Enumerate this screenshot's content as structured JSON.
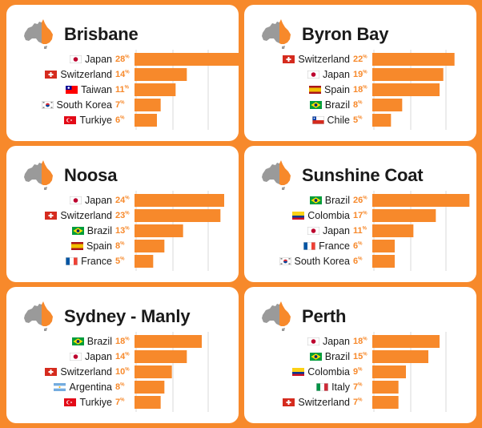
{
  "colors": {
    "background": "#F7892B",
    "bar": "#F7892B",
    "card": "#FFFFFF",
    "grid": "#D9D9D9",
    "map_grey": "#9A9A9A"
  },
  "chart_data": [
    {
      "type": "bar",
      "orientation": "horizontal",
      "title": "Brisbane",
      "xlim": [
        0,
        30
      ],
      "categories": [
        "Japan",
        "Switzerland",
        "Taiwan",
        "South Korea",
        "Turkiye"
      ],
      "values": [
        28,
        14,
        11,
        7,
        6
      ],
      "value_labels": [
        "28%",
        "14%",
        "11%",
        "7%",
        "6%"
      ],
      "flags": [
        "flag-japan-icon",
        "flag-switzerland-icon",
        "flag-taiwan-icon",
        "flag-south-korea-icon",
        "flag-turkiye-icon"
      ]
    },
    {
      "type": "bar",
      "orientation": "horizontal",
      "title": "Byron Bay",
      "xlim": [
        0,
        30
      ],
      "categories": [
        "Switzerland",
        "Japan",
        "Spain",
        "Brazil",
        "Chile"
      ],
      "values": [
        22,
        19,
        18,
        8,
        5
      ],
      "value_labels": [
        "22%",
        "19%",
        "18%",
        "8%",
        "5%"
      ],
      "flags": [
        "flag-switzerland-icon",
        "flag-japan-icon",
        "flag-spain-icon",
        "flag-brazil-icon",
        "flag-chile-icon"
      ]
    },
    {
      "type": "bar",
      "orientation": "horizontal",
      "title": "Noosa",
      "xlim": [
        0,
        30
      ],
      "categories": [
        "Japan",
        "Switzerland",
        "Brazil",
        "Spain",
        "France"
      ],
      "values": [
        24,
        23,
        13,
        8,
        5
      ],
      "value_labels": [
        "24%",
        "23%",
        "13%",
        "8%",
        "5%"
      ],
      "flags": [
        "flag-japan-icon",
        "flag-switzerland-icon",
        "flag-brazil-icon",
        "flag-spain-icon",
        "flag-france-icon"
      ]
    },
    {
      "type": "bar",
      "orientation": "horizontal",
      "title": "Sunshine Coat",
      "xlim": [
        0,
        30
      ],
      "categories": [
        "Brazil",
        "Colombia",
        "Japan",
        "France",
        "South Korea"
      ],
      "values": [
        26,
        17,
        11,
        6,
        6
      ],
      "value_labels": [
        "26%",
        "17%",
        "11%",
        "6%",
        "6%"
      ],
      "flags": [
        "flag-brazil-icon",
        "flag-colombia-icon",
        "flag-japan-icon",
        "flag-france-icon",
        "flag-south-korea-icon"
      ]
    },
    {
      "type": "bar",
      "orientation": "horizontal",
      "title": "Sydney - Manly",
      "xlim": [
        0,
        30
      ],
      "categories": [
        "Brazil",
        "Japan",
        "Switzerland",
        "Argentina",
        "Turkiye"
      ],
      "values": [
        18,
        14,
        10,
        8,
        7
      ],
      "value_labels": [
        "18%",
        "14%",
        "10%",
        "8%",
        "7%"
      ],
      "flags": [
        "flag-brazil-icon",
        "flag-japan-icon",
        "flag-switzerland-icon",
        "flag-argentina-icon",
        "flag-turkiye-icon"
      ]
    },
    {
      "type": "bar",
      "orientation": "horizontal",
      "title": "Perth",
      "xlim": [
        0,
        30
      ],
      "categories": [
        "Japan",
        "Brazil",
        "Colombia",
        "Italy",
        "Switzerland"
      ],
      "values": [
        18,
        15,
        9,
        7,
        7
      ],
      "value_labels": [
        "18%",
        "15%",
        "9%",
        "7%",
        "7%"
      ],
      "flags": [
        "flag-japan-icon",
        "flag-brazil-icon",
        "flag-colombia-icon",
        "flag-italy-icon",
        "flag-switzerland-icon"
      ]
    }
  ]
}
